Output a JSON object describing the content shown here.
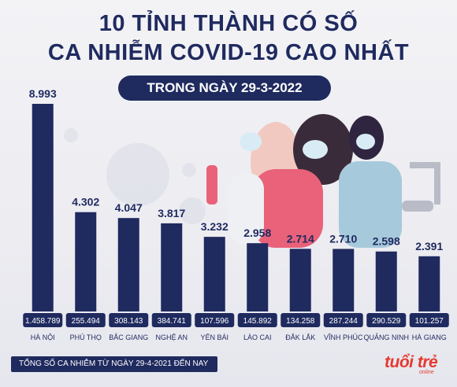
{
  "header": {
    "title_line1": "10 TỈNH THÀNH CÓ SỐ",
    "title_line2": "CA NHIỄM COVID-19 CAO NHẤT",
    "subtitle": "TRONG NGÀY 29-3-2022"
  },
  "legend": {
    "total_label": "TỔNG SỐ CA NHIỄM TỪ NGÀY 29-4-2021 ĐẾN NAY"
  },
  "branding": {
    "logo_text": "tuổi trẻ",
    "logo_sub": "online"
  },
  "colors": {
    "bar": "#1f2a5f",
    "title": "#1f2a5f",
    "logo": "#e53a2f"
  },
  "chart_data": {
    "type": "bar",
    "title": "10 TỈNH THÀNH CÓ SỐ CA NHIỄM COVID-19 CAO NHẤT",
    "subtitle": "TRONG NGÀY 29-3-2022",
    "categories": [
      "HÀ NỘI",
      "PHÚ THỌ",
      "BẮC GIANG",
      "NGHỆ AN",
      "YÊN BÁI",
      "LÀO CAI",
      "ĐẮK LẮK",
      "VĨNH PHÚC",
      "QUẢNG NINH",
      "HÀ GIANG"
    ],
    "values": [
      8993,
      4302,
      4047,
      3817,
      3232,
      2958,
      2714,
      2710,
      2598,
      2391
    ],
    "value_labels": [
      "8.993",
      "4.302",
      "4.047",
      "3.817",
      "3.232",
      "2.958",
      "2.714",
      "2.710",
      "2.598",
      "2.391"
    ],
    "totals": [
      1458789,
      255494,
      308143,
      384741,
      107596,
      145892,
      134258,
      287244,
      290529,
      101257
    ],
    "total_labels": [
      "1.458.789",
      "255.494",
      "308.143",
      "384.741",
      "107.596",
      "145.892",
      "134.258",
      "287.244",
      "290.529",
      "101.257"
    ],
    "ylim": [
      0,
      8993
    ],
    "grid": false,
    "legend": "bottom-left"
  }
}
